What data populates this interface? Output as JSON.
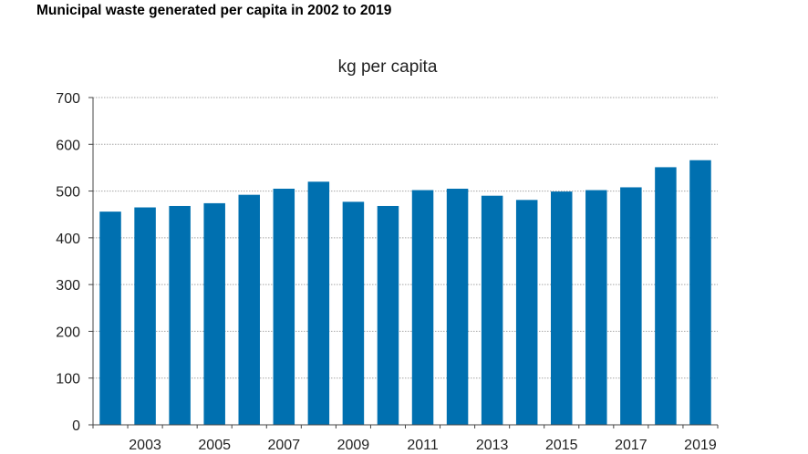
{
  "title": "Municipal waste generated per capita in 2002 to 2019",
  "chart_data": {
    "type": "bar",
    "unit_label": "kg per capita",
    "categories": [
      "2002",
      "2003",
      "2004",
      "2005",
      "2006",
      "2007",
      "2008",
      "2009",
      "2010",
      "2011",
      "2012",
      "2013",
      "2014",
      "2015",
      "2016",
      "2017",
      "2018",
      "2019"
    ],
    "x_tick_labels": [
      "2003",
      "2005",
      "2007",
      "2009",
      "2011",
      "2013",
      "2015",
      "2017",
      "2019"
    ],
    "values": [
      456,
      465,
      468,
      474,
      492,
      505,
      520,
      477,
      468,
      502,
      505,
      490,
      481,
      499,
      502,
      508,
      551,
      566
    ],
    "ylim": [
      0,
      700
    ],
    "y_ticks": [
      0,
      100,
      200,
      300,
      400,
      500,
      600,
      700
    ],
    "grid": true,
    "bar_color": "#0070b0"
  }
}
